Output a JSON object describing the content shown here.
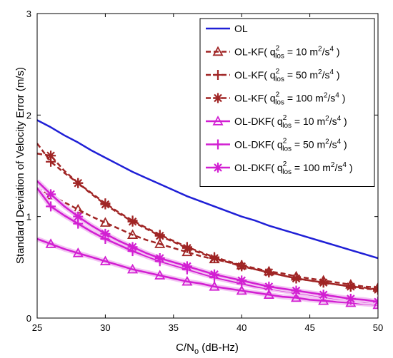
{
  "chart_data": {
    "type": "line",
    "xlabel": {
      "main": "C/N",
      "sub": "o",
      "rest": " (dB-Hz)"
    },
    "ylabel": "Standard Deviation of Velocity Error (m/s)",
    "xlim": [
      25,
      50
    ],
    "ylim": [
      0,
      3
    ],
    "xticks": [
      "25",
      "30",
      "35",
      "40",
      "45",
      "50"
    ],
    "yticks": [
      "0",
      "1",
      "2",
      "3"
    ],
    "grid": false,
    "legend_position": "top-right",
    "x": [
      25,
      26,
      27,
      28,
      29,
      30,
      31,
      32,
      33,
      34,
      35,
      36,
      37,
      38,
      39,
      40,
      41,
      42,
      43,
      44,
      45,
      46,
      47,
      48,
      49,
      50
    ],
    "series": [
      {
        "name": "OL",
        "color": "#1f1fd6",
        "marker": "none",
        "dash": false,
        "values": [
          1.95,
          1.88,
          1.8,
          1.73,
          1.65,
          1.58,
          1.51,
          1.44,
          1.38,
          1.32,
          1.26,
          1.2,
          1.15,
          1.1,
          1.05,
          1.0,
          0.96,
          0.91,
          0.87,
          0.83,
          0.79,
          0.75,
          0.71,
          0.67,
          0.63,
          0.59
        ]
      },
      {
        "name": "OL-KF( q_los^2 = 10 m^2/s^4 )",
        "color": "#a02525",
        "marker": "triangle",
        "dash": true,
        "label_parts": [
          "OL-KF( q",
          "2",
          "los",
          " = 10 m",
          "2",
          "/s",
          "4",
          " )"
        ],
        "values": [
          1.28,
          1.21,
          1.14,
          1.07,
          1.0,
          0.94,
          0.88,
          0.82,
          0.77,
          0.73,
          0.69,
          0.65,
          0.61,
          0.58,
          0.55,
          0.52,
          0.49,
          0.46,
          0.44,
          0.41,
          0.39,
          0.37,
          0.35,
          0.33,
          0.31,
          0.3
        ]
      },
      {
        "name": "OL-KF( q_los^2 = 50 m^2/s^4 )",
        "color": "#a02525",
        "marker": "plus",
        "dash": true,
        "label_parts": [
          "OL-KF( q",
          "2",
          "los",
          " = 50 m",
          "2",
          "/s",
          "4",
          " )"
        ],
        "values": [
          1.72,
          1.54,
          1.43,
          1.33,
          1.23,
          1.13,
          1.04,
          0.96,
          0.89,
          0.82,
          0.76,
          0.7,
          0.65,
          0.6,
          0.56,
          0.52,
          0.48,
          0.45,
          0.42,
          0.39,
          0.37,
          0.35,
          0.33,
          0.31,
          0.29,
          0.28
        ]
      },
      {
        "name": "OL-KF( q_los^2 = 100 m^2/s^4 )",
        "color": "#a02525",
        "marker": "star",
        "dash": true,
        "label_parts": [
          "OL-KF( q",
          "2",
          "los",
          " = 100 m",
          "2",
          "/s",
          "4",
          " )"
        ],
        "values": [
          1.62,
          1.6,
          1.45,
          1.33,
          1.22,
          1.12,
          1.03,
          0.95,
          0.88,
          0.81,
          0.75,
          0.69,
          0.64,
          0.59,
          0.55,
          0.51,
          0.48,
          0.45,
          0.42,
          0.39,
          0.37,
          0.35,
          0.33,
          0.31,
          0.3,
          0.28
        ]
      },
      {
        "name": "OL-DKF( q_los^2 = 10 m^2/s^4 )",
        "color": "#d21fd2",
        "marker": "triangle",
        "dash": false,
        "label_parts": [
          "OL-DKF( q",
          "2",
          "los",
          " = 10 m",
          "2",
          "/s",
          "4",
          " )"
        ],
        "values": [
          0.78,
          0.73,
          0.68,
          0.64,
          0.6,
          0.56,
          0.52,
          0.48,
          0.45,
          0.42,
          0.39,
          0.36,
          0.34,
          0.31,
          0.29,
          0.27,
          0.25,
          0.23,
          0.21,
          0.2,
          0.18,
          0.17,
          0.16,
          0.15,
          0.14,
          0.13
        ]
      },
      {
        "name": "OL-DKF( q_los^2 = 50 m^2/s^4 )",
        "color": "#d21fd2",
        "marker": "plus",
        "dash": false,
        "label_parts": [
          "OL-DKF( q",
          "2",
          "los",
          " = 50 m",
          "2",
          "/s",
          "4",
          " )"
        ],
        "values": [
          1.28,
          1.1,
          1.01,
          0.93,
          0.85,
          0.78,
          0.72,
          0.66,
          0.61,
          0.56,
          0.52,
          0.48,
          0.44,
          0.4,
          0.37,
          0.34,
          0.31,
          0.29,
          0.27,
          0.25,
          0.23,
          0.21,
          0.19,
          0.18,
          0.16,
          0.15
        ]
      },
      {
        "name": "OL-DKF( q_los^2 = 100 m^2/s^4 )",
        "color": "#d21fd2",
        "marker": "star",
        "dash": false,
        "label_parts": [
          "OL-DKF( q",
          "2",
          "los",
          " = 100 m",
          "2",
          "/s",
          "4",
          " )"
        ],
        "values": [
          1.35,
          1.22,
          1.1,
          1.0,
          0.91,
          0.83,
          0.76,
          0.7,
          0.64,
          0.59,
          0.55,
          0.51,
          0.47,
          0.43,
          0.4,
          0.37,
          0.34,
          0.31,
          0.29,
          0.27,
          0.25,
          0.23,
          0.21,
          0.19,
          0.18,
          0.16
        ]
      }
    ],
    "marker_x": [
      26,
      28,
      30,
      32,
      34,
      36,
      38,
      40,
      42,
      44,
      46,
      48,
      50
    ]
  }
}
